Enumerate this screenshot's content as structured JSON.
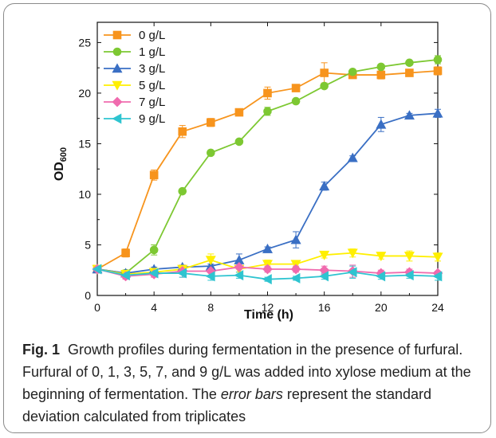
{
  "chart_data": {
    "type": "line",
    "xlabel": "Time (h)",
    "ylabel": "OD",
    "ylabel_sub": "600",
    "xlim": [
      0,
      24
    ],
    "ylim": [
      0,
      27
    ],
    "xticks": [
      0,
      4,
      8,
      12,
      16,
      20,
      24
    ],
    "yticks": [
      0,
      5,
      10,
      15,
      20,
      25
    ],
    "grid": false,
    "legend_position": "top-left",
    "x": [
      0,
      2,
      4,
      6,
      8,
      10,
      12,
      14,
      16,
      18,
      20,
      22,
      24
    ],
    "series": [
      {
        "name": "0 g/L",
        "color": "#F7941D",
        "marker": "square",
        "values": [
          2.6,
          4.2,
          11.9,
          16.2,
          17.1,
          18.1,
          20.0,
          20.5,
          22.0,
          21.8,
          21.8,
          22.0,
          22.2
        ],
        "errors": [
          0.2,
          0.4,
          0.5,
          0.6,
          0.4,
          0.2,
          0.6,
          0.2,
          1.0,
          0.2,
          0.4,
          0.3,
          0.4
        ]
      },
      {
        "name": "1 g/L",
        "color": "#7DC832",
        "marker": "circle",
        "values": [
          2.6,
          2.2,
          4.5,
          10.3,
          14.1,
          15.2,
          18.2,
          19.2,
          20.7,
          22.1,
          22.6,
          23.0,
          23.3
        ],
        "errors": [
          0.2,
          0.3,
          0.5,
          0.2,
          0.2,
          0.2,
          0.4,
          0.2,
          0.2,
          0.2,
          0.2,
          0.2,
          0.4
        ]
      },
      {
        "name": "3 g/L",
        "color": "#3A6FC4",
        "marker": "triangle-up",
        "values": [
          2.6,
          2.2,
          2.6,
          2.8,
          2.9,
          3.5,
          4.6,
          5.5,
          10.8,
          13.6,
          16.9,
          17.8,
          18.0
        ],
        "errors": [
          0.2,
          0.3,
          0.2,
          0.2,
          0.2,
          0.6,
          0.2,
          0.8,
          0.4,
          0.2,
          0.7,
          0.2,
          0.4
        ]
      },
      {
        "name": "5 g/L",
        "color": "#FFEF00",
        "marker": "triangle-down",
        "values": [
          2.6,
          2.1,
          2.3,
          2.6,
          3.5,
          2.6,
          3.1,
          3.1,
          4.0,
          4.2,
          3.9,
          3.9,
          3.8
        ],
        "errors": [
          0.2,
          0.4,
          0.3,
          0.3,
          0.6,
          0.3,
          0.4,
          0.3,
          0.3,
          0.4,
          0.3,
          0.5,
          0.4
        ]
      },
      {
        "name": "7 g/L",
        "color": "#F06BAE",
        "marker": "diamond",
        "values": [
          2.6,
          1.9,
          2.1,
          2.4,
          2.4,
          2.8,
          2.6,
          2.6,
          2.5,
          2.4,
          2.2,
          2.3,
          2.2
        ],
        "errors": [
          0.2,
          0.3,
          0.3,
          0.6,
          0.4,
          0.2,
          0.3,
          0.3,
          0.4,
          0.6,
          0.3,
          0.3,
          0.2
        ]
      },
      {
        "name": "9 g/L",
        "color": "#2EC4D0",
        "marker": "triangle-left",
        "values": [
          2.6,
          2.0,
          2.2,
          2.2,
          1.9,
          2.0,
          1.6,
          1.7,
          1.9,
          2.3,
          1.9,
          2.0,
          1.9
        ],
        "errors": [
          0.2,
          0.3,
          0.3,
          0.4,
          0.4,
          0.3,
          0.2,
          0.2,
          0.3,
          0.6,
          0.3,
          0.3,
          0.4
        ]
      }
    ]
  },
  "caption": {
    "figure_label": "Fig. 1",
    "text_part1": "Growth profiles during fermentation in the presence of furfural. Furfural of 0, 1, 3, 5, 7, and 9 g/L was added into xylose medium at the beginning of fermentation. The ",
    "emphasis": "error bars",
    "text_part2": " represent the standard deviation calculated from triplicates"
  }
}
